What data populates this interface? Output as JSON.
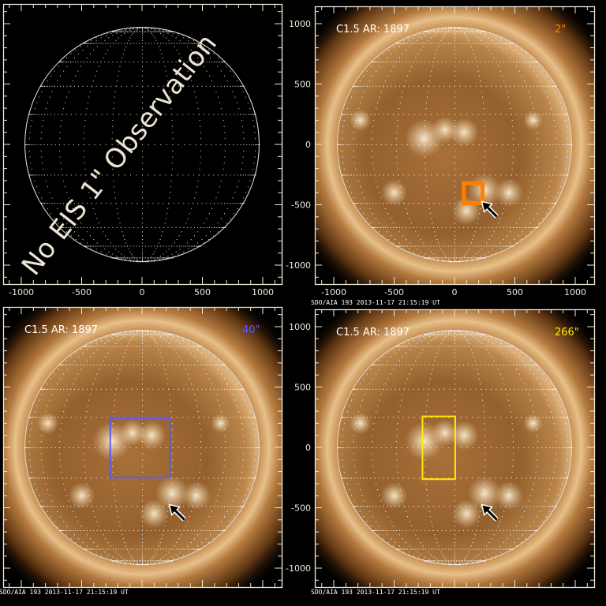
{
  "figure": {
    "disk_radius_arcsec": 970,
    "axis_range": [
      -1150,
      1150
    ],
    "x_ticks": [
      "-1000",
      "-500",
      "0",
      "500",
      "1000"
    ],
    "y_ticks": [
      "1000",
      "500",
      "0",
      "-500",
      "-1000"
    ],
    "arrow_target_arcsec": [
      200,
      -500
    ],
    "panels": [
      {
        "id": "top-left",
        "image": "none",
        "overlay_text": "No EIS 1\" Observation",
        "show_x_labels": true,
        "show_y_labels": true,
        "caption": ""
      },
      {
        "id": "top-right",
        "image": "aia193",
        "flare_label": "C1.5 AR: 1897",
        "raster_label": "2\"",
        "raster_color": "#ff7f00",
        "box_arcsec": [
          77,
          -487,
          232,
          -322
        ],
        "box_filled_frame": true,
        "show_x_labels": true,
        "show_y_labels": true,
        "caption": "SDO/AIA 193   2013-11-17 21:15:19 UT"
      },
      {
        "id": "bottom-left",
        "image": "aia193",
        "flare_label": "C1.5 AR: 1897",
        "raster_label": "40\"",
        "raster_color": "#5a5aff",
        "box_arcsec": [
          -263,
          -250,
          230,
          243
        ],
        "show_x_labels": false,
        "show_y_labels": true,
        "caption": "SDO/AIA 193   2013-11-17 21:15:19 UT"
      },
      {
        "id": "bottom-right",
        "image": "aia193",
        "flare_label": "C1.5 AR: 1897",
        "raster_label": "266\"",
        "raster_color": "#ffee00",
        "box_arcsec": [
          -265,
          -263,
          6,
          257
        ],
        "show_x_labels": false,
        "show_y_labels": true,
        "caption": "SDO/AIA 193   2013-11-17 21:15:19 UT"
      }
    ]
  }
}
